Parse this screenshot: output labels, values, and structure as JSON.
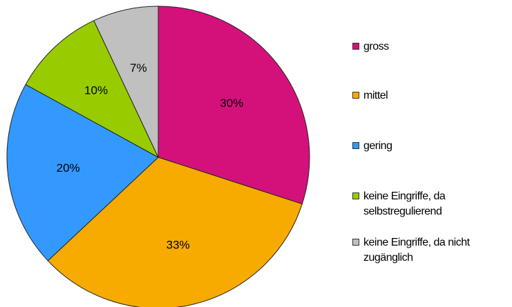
{
  "chart_data": {
    "type": "pie",
    "categories": [
      "gross",
      "mittel",
      "gering",
      "keine Eingriffe, da selbstregulierend",
      "keine Eingriffe, da nicht zugänglich"
    ],
    "values": [
      30,
      33,
      20,
      10,
      7
    ],
    "value_labels": [
      "30%",
      "33%",
      "20%",
      "10%",
      "7%"
    ],
    "colors": [
      "#d4117a",
      "#f7ab00",
      "#3399ff",
      "#99cc00",
      "#c0c0c0"
    ],
    "legend": "right"
  }
}
